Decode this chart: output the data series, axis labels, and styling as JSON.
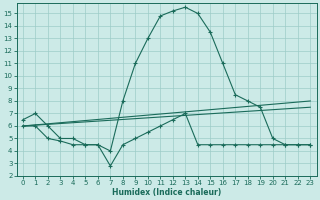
{
  "xlabel": "Humidex (Indice chaleur)",
  "bg_color": "#cceae7",
  "grid_color": "#9dccc8",
  "line_color": "#1a6b5a",
  "xlim": [
    -0.5,
    23.5
  ],
  "ylim": [
    2,
    15.8
  ],
  "xticks": [
    0,
    1,
    2,
    3,
    4,
    5,
    6,
    7,
    8,
    9,
    10,
    11,
    12,
    13,
    14,
    15,
    16,
    17,
    18,
    19,
    20,
    21,
    22,
    23
  ],
  "yticks": [
    2,
    3,
    4,
    5,
    6,
    7,
    8,
    9,
    10,
    11,
    12,
    13,
    14,
    15
  ],
  "line1_x": [
    0,
    1,
    2,
    3,
    4,
    5,
    6,
    7,
    8,
    9,
    10,
    11,
    12,
    13,
    14,
    15,
    16,
    17,
    18,
    19,
    20,
    21,
    22,
    23
  ],
  "line1_y": [
    6.5,
    7.0,
    6.0,
    5.0,
    5.0,
    4.5,
    4.5,
    4.0,
    8.0,
    11.0,
    13.0,
    14.8,
    15.2,
    15.5,
    15.0,
    13.5,
    11.0,
    8.5,
    8.0,
    7.5,
    5.0,
    4.5,
    4.5,
    4.5
  ],
  "line2_x": [
    0,
    1,
    2,
    3,
    4,
    5,
    6,
    7,
    8,
    9,
    10,
    11,
    12,
    13,
    14,
    15,
    16,
    17,
    18,
    19,
    20,
    21,
    22,
    23
  ],
  "line2_y": [
    6.0,
    6.0,
    5.0,
    4.8,
    4.5,
    4.5,
    4.5,
    2.8,
    4.5,
    5.0,
    5.5,
    6.0,
    6.5,
    7.0,
    4.5,
    4.5,
    4.5,
    4.5,
    4.5,
    4.5,
    4.5,
    4.5,
    4.5,
    4.5
  ],
  "line3_x": [
    0,
    23
  ],
  "line3_y": [
    6.0,
    8.0
  ],
  "line4_x": [
    0,
    23
  ],
  "line4_y": [
    6.0,
    7.5
  ]
}
